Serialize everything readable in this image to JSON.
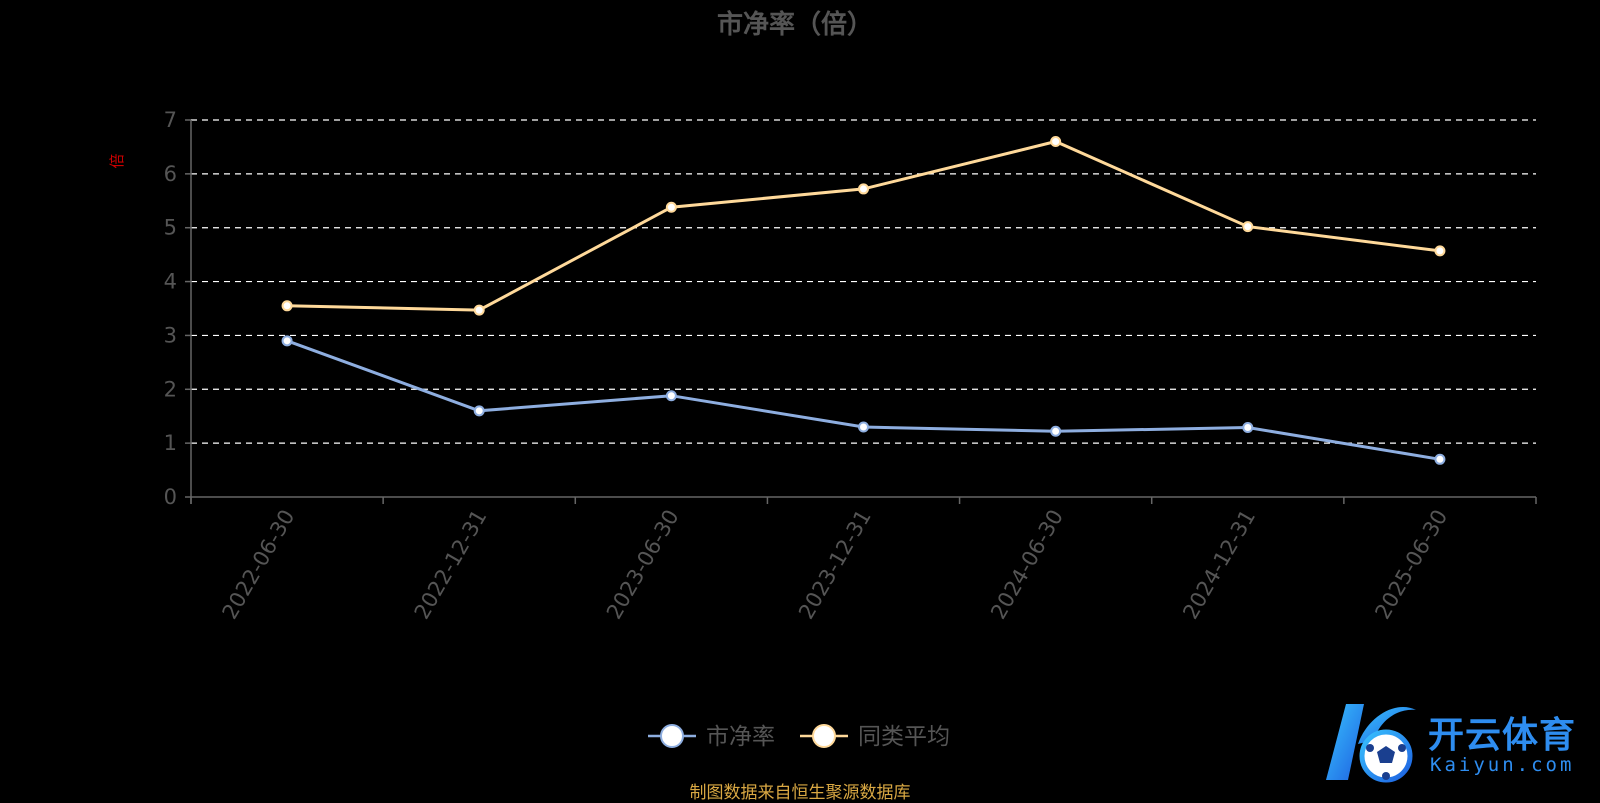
{
  "chart_data": {
    "type": "line",
    "title": "市净率（倍）",
    "ylabel": "倍",
    "ylim": [
      0,
      7
    ],
    "yticks": [
      0,
      1,
      2,
      3,
      4,
      5,
      6,
      7
    ],
    "grid": true,
    "legend": "bottom-center",
    "categories": [
      "2022-06-30",
      "2022-12-31",
      "2023-06-30",
      "2023-12-31",
      "2024-06-30",
      "2024-12-31",
      "2025-06-30"
    ],
    "series": [
      {
        "name": "市净率",
        "color": "#8eaee0",
        "values": [
          2.9,
          1.6,
          1.88,
          1.3,
          1.22,
          1.29,
          0.7
        ]
      },
      {
        "name": "同类平均",
        "color": "#ffd99a",
        "values": [
          3.55,
          3.47,
          5.38,
          5.72,
          6.6,
          5.02,
          4.57
        ]
      }
    ],
    "colors": {
      "background": "#000000",
      "title": "#555555",
      "axis": "#666666",
      "tick_label": "#555555",
      "ylabel": "#cc0000",
      "grid": "#ffffff"
    }
  },
  "footer": {
    "source": "制图数据来自恒生聚源数据库"
  },
  "logo": {
    "name": "开云体育",
    "domain": "Kaiyun.com",
    "icon": "soccer-ball-k-icon"
  }
}
